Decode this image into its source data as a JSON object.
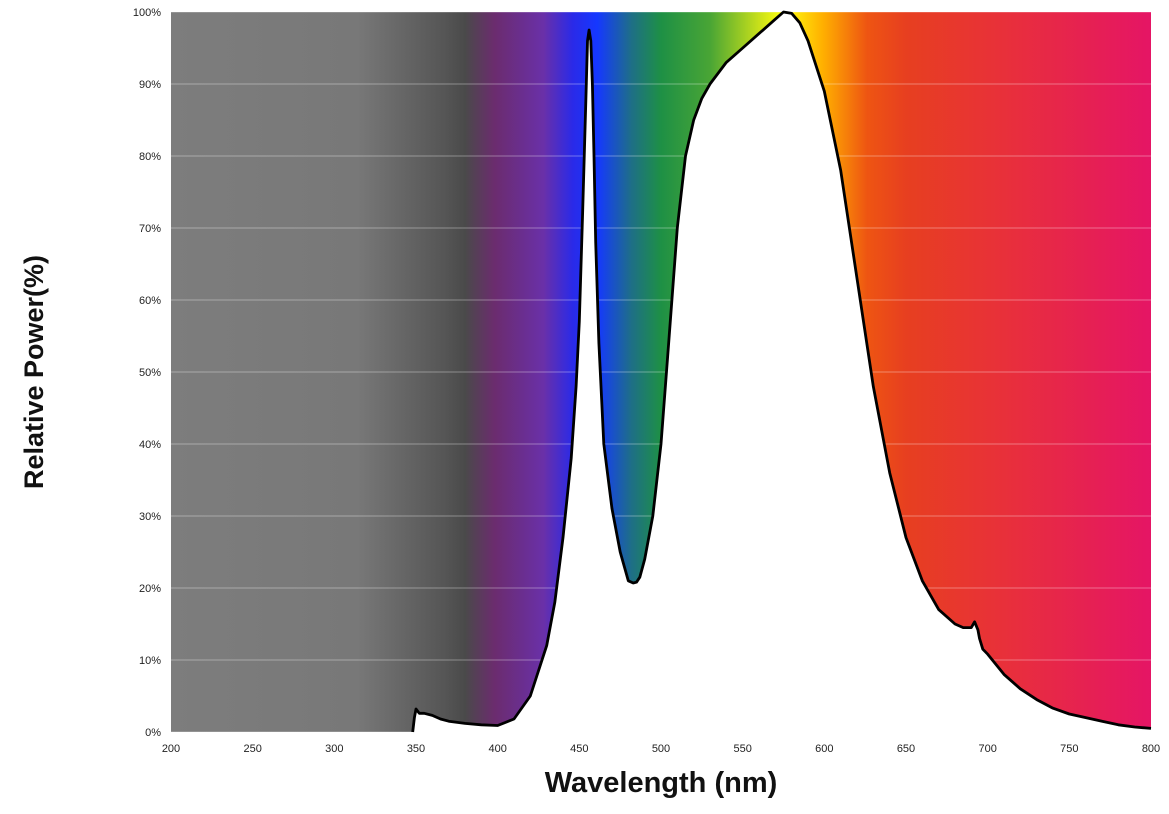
{
  "chart_data": {
    "type": "area",
    "title": "",
    "xlabel": "Wavelength (nm)",
    "ylabel": "Relative Power(%)",
    "xlim": [
      200,
      800
    ],
    "ylim": [
      0,
      100
    ],
    "x_ticks": [
      "200",
      "250",
      "300",
      "350",
      "400",
      "450",
      "500",
      "550",
      "600",
      "650",
      "700",
      "750",
      "800"
    ],
    "y_ticks": [
      "0%",
      "10%",
      "20%",
      "30%",
      "40%",
      "50%",
      "60%",
      "70%",
      "80%",
      "90%",
      "100%"
    ],
    "grid": "horizontal",
    "legend": "none",
    "background": "visible-spectrum gradient (gray below ~370 nm, violet 400, blue 450, green 500, yellow 575, orange 610, red 650+, crimson at 800)",
    "series": [
      {
        "name": "",
        "color": "#000000",
        "fill": "#ffffff",
        "x": [
          348,
          349,
          350,
          352,
          355,
          360,
          365,
          370,
          380,
          390,
          400,
          410,
          420,
          430,
          435,
          440,
          445,
          448,
          450,
          452,
          454,
          455,
          456,
          457,
          458,
          459,
          460,
          462,
          465,
          470,
          475,
          480,
          483,
          485,
          487,
          490,
          495,
          500,
          505,
          510,
          515,
          520,
          525,
          530,
          540,
          550,
          560,
          570,
          575,
          580,
          585,
          590,
          600,
          610,
          620,
          630,
          640,
          650,
          660,
          670,
          680,
          685,
          690,
          692,
          694,
          695,
          697,
          700,
          710,
          720,
          730,
          740,
          750,
          760,
          770,
          780,
          790,
          800
        ],
        "y": [
          0,
          2.0,
          3.2,
          2.6,
          2.6,
          2.3,
          1.8,
          1.5,
          1.2,
          1.0,
          0.9,
          1.8,
          5.0,
          12.0,
          18.0,
          27.0,
          38.0,
          48.0,
          57.0,
          72.0,
          88.0,
          96.0,
          97.5,
          96.0,
          90.0,
          80.0,
          68.0,
          54.0,
          40.0,
          31.0,
          25.0,
          21.0,
          20.7,
          20.8,
          21.5,
          24.0,
          30.0,
          40.0,
          55.0,
          70.0,
          80.0,
          85.0,
          88.0,
          90.0,
          93.0,
          95.0,
          97.0,
          99.0,
          100.0,
          99.8,
          98.5,
          96.0,
          89.0,
          78.0,
          63.0,
          48.0,
          36.0,
          27.0,
          21.0,
          17.0,
          15.0,
          14.5,
          14.5,
          15.3,
          14.2,
          13.0,
          11.5,
          10.8,
          8.0,
          6.0,
          4.5,
          3.3,
          2.5,
          2.0,
          1.5,
          1.0,
          0.7,
          0.5
        ]
      }
    ]
  }
}
